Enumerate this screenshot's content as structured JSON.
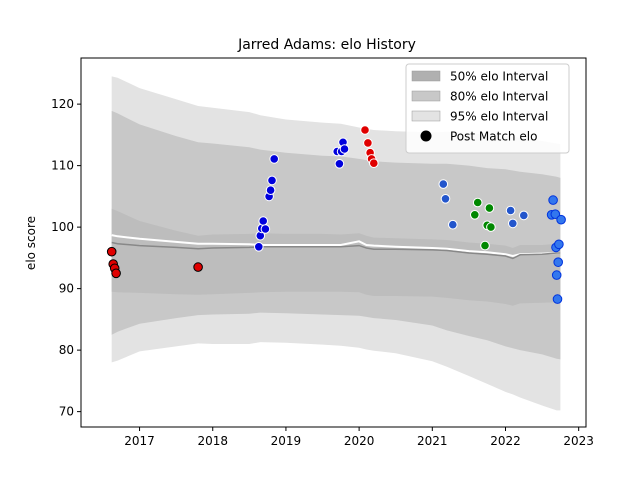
{
  "chart_data": {
    "type": "scatter",
    "title": "Jarred Adams: elo History",
    "xlabel": "",
    "ylabel": "elo score",
    "xlim": [
      2016.2,
      2023.1
    ],
    "ylim": [
      67.5,
      127.5
    ],
    "x_ticks": [
      "2017",
      "2018",
      "2019",
      "2020",
      "2021",
      "2022",
      "2023"
    ],
    "x_tick_values": [
      2017,
      2018,
      2019,
      2020,
      2021,
      2022,
      2023
    ],
    "y_ticks": [
      70,
      80,
      90,
      100,
      110,
      120
    ],
    "grid": false,
    "legend_position": "top-right",
    "legend": [
      {
        "label": "50% elo Interval",
        "color": "#b0b0b0"
      },
      {
        "label": "80% elo Interval",
        "color": "#c8c8c8"
      },
      {
        "label": "95% elo Interval",
        "color": "#e3e3e3"
      },
      {
        "label": "Post Match elo",
        "color": "#000000"
      }
    ],
    "bands": {
      "x": [
        2016.62,
        2016.7,
        2017.0,
        2017.5,
        2017.8,
        2018.0,
        2018.5,
        2018.65,
        2019.0,
        2019.5,
        2019.75,
        2020.0,
        2020.1,
        2020.2,
        2020.5,
        2021.0,
        2021.2,
        2021.5,
        2021.75,
        2022.0,
        2022.1,
        2022.2,
        2022.5,
        2022.7,
        2022.75
      ],
      "median": [
        97.5,
        97.3,
        97.0,
        96.7,
        96.5,
        96.6,
        96.7,
        96.8,
        96.8,
        96.8,
        96.8,
        97.0,
        96.6,
        96.4,
        96.4,
        96.3,
        96.2,
        95.8,
        95.6,
        95.3,
        94.9,
        95.5,
        95.6,
        95.8,
        95.8
      ],
      "p95": [
        124.5,
        124.3,
        122.6,
        120.8,
        119.7,
        119.4,
        118.7,
        118.2,
        117.5,
        117.0,
        116.8,
        116.2,
        116.0,
        115.8,
        115.6,
        115.4,
        115.5,
        115.3,
        115.0,
        114.8,
        114.7,
        114.5,
        114.0,
        113.6,
        113.5
      ],
      "p5": [
        78.0,
        78.3,
        79.8,
        80.6,
        81.1,
        81.0,
        81.0,
        81.3,
        81.2,
        80.9,
        80.7,
        80.4,
        80.1,
        79.9,
        79.5,
        78.2,
        77.3,
        75.8,
        74.5,
        73.2,
        72.8,
        72.3,
        71.0,
        70.2,
        70.2
      ],
      "p90": [
        118.9,
        118.5,
        116.7,
        114.8,
        113.8,
        113.6,
        113.0,
        112.6,
        112.1,
        111.6,
        111.5,
        111.1,
        110.9,
        110.7,
        110.5,
        110.3,
        110.3,
        110.0,
        109.6,
        109.4,
        109.2,
        109.0,
        108.6,
        108.2,
        108.0
      ],
      "p10": [
        82.5,
        83.0,
        84.3,
        85.2,
        85.7,
        85.8,
        85.9,
        86.1,
        86.0,
        85.8,
        85.7,
        85.6,
        85.4,
        85.2,
        84.9,
        84.0,
        83.2,
        82.3,
        81.6,
        80.6,
        80.3,
        80.0,
        79.3,
        78.6,
        78.5
      ],
      "p75": [
        103.0,
        102.6,
        101.0,
        99.4,
        98.6,
        98.8,
        98.9,
        99.0,
        98.9,
        98.9,
        98.8,
        99.0,
        98.6,
        98.3,
        98.2,
        98.0,
        97.9,
        97.5,
        97.3,
        97.0,
        96.6,
        97.1,
        97.1,
        97.3,
        97.3
      ],
      "p25": [
        89.5,
        89.4,
        89.3,
        89.1,
        89.0,
        89.1,
        89.3,
        89.4,
        89.5,
        89.5,
        89.5,
        89.4,
        89.0,
        88.8,
        88.8,
        88.7,
        88.5,
        88.1,
        87.9,
        87.5,
        87.2,
        87.6,
        87.7,
        87.8,
        87.8
      ],
      "mean": [
        98.7,
        98.5,
        98.1,
        97.6,
        97.3,
        97.3,
        97.2,
        97.1,
        97.1,
        97.1,
        97.1,
        97.7,
        97.1,
        97.0,
        96.8,
        96.6,
        96.5,
        96.1,
        95.9,
        95.6,
        95.3,
        95.6,
        95.7,
        95.8,
        95.8
      ]
    },
    "series": [
      {
        "color": "#e00000",
        "edge": "#000000",
        "x": [
          2016.62,
          2016.64,
          2016.66,
          2016.68,
          2017.8
        ],
        "y": [
          96.0,
          94.0,
          93.3,
          92.5,
          93.5
        ]
      },
      {
        "color": "#0000dd",
        "edge": "#ffffff",
        "x": [
          2018.63,
          2018.65,
          2018.67,
          2018.69,
          2018.72,
          2018.77,
          2018.79,
          2018.81,
          2018.84,
          2019.7,
          2019.73,
          2019.76,
          2019.78,
          2019.8
        ],
        "y": [
          96.8,
          98.6,
          99.8,
          101.0,
          99.7,
          105.0,
          106.0,
          107.6,
          111.1,
          112.3,
          110.3,
          112.3,
          113.8,
          112.7
        ]
      },
      {
        "color": "#e00000",
        "edge": "#ffffff",
        "x": [
          2020.08,
          2020.12,
          2020.15,
          2020.17,
          2020.2
        ],
        "y": [
          115.8,
          113.7,
          112.1,
          111.1,
          110.4
        ]
      },
      {
        "color": "#2255cc",
        "edge": "#ffffff",
        "x": [
          2021.15,
          2021.18,
          2021.28,
          2022.07,
          2022.1,
          2022.25
        ],
        "y": [
          107.0,
          104.6,
          100.4,
          102.7,
          100.6,
          101.9
        ]
      },
      {
        "color": "#008800",
        "edge": "#ffffff",
        "x": [
          2021.58,
          2021.62,
          2021.72,
          2021.75,
          2021.78,
          2021.8
        ],
        "y": [
          102.0,
          104.0,
          97.0,
          100.3,
          103.1,
          100.0
        ]
      },
      {
        "color": "#3377ee",
        "edge": "#0033dd",
        "x": [
          2022.63,
          2022.65,
          2022.68,
          2022.69,
          2022.7,
          2022.71,
          2022.72,
          2022.73,
          2022.76
        ],
        "y": [
          102.0,
          104.4,
          102.1,
          96.7,
          92.2,
          88.3,
          94.3,
          97.2,
          101.2
        ]
      }
    ]
  }
}
